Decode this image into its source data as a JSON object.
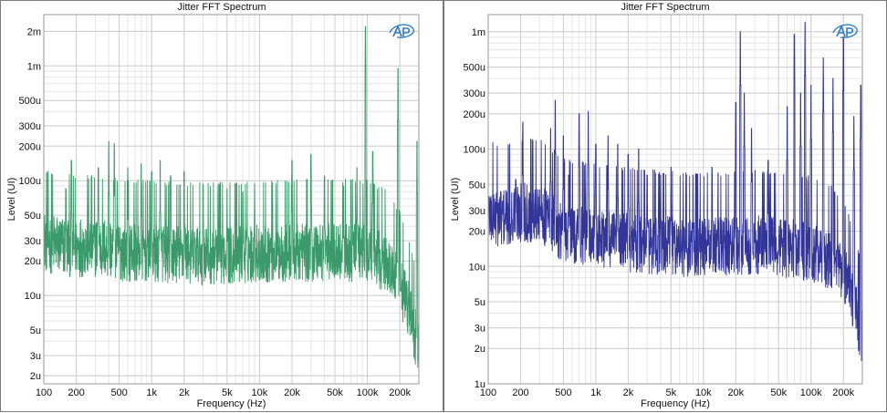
{
  "chart_data": [
    {
      "type": "line",
      "title": "Jitter FFT Spectrum",
      "xlabel": "Frequency (Hz)",
      "ylabel": "Level (UI)",
      "x_scale": "log",
      "y_scale": "log",
      "xlim": [
        100,
        300000
      ],
      "ylim": [
        1.7e-06,
        0.0028
      ],
      "grid": true,
      "x_ticks": [
        {
          "v": 100,
          "label": "100"
        },
        {
          "v": 200,
          "label": "200"
        },
        {
          "v": 500,
          "label": "500"
        },
        {
          "v": 1000,
          "label": "1k"
        },
        {
          "v": 2000,
          "label": "2k"
        },
        {
          "v": 5000,
          "label": "5k"
        },
        {
          "v": 10000,
          "label": "10k"
        },
        {
          "v": 20000,
          "label": "20k"
        },
        {
          "v": 50000,
          "label": "50k"
        },
        {
          "v": 100000,
          "label": "100k"
        },
        {
          "v": 200000,
          "label": "200k"
        }
      ],
      "y_ticks": [
        {
          "v": 0.002,
          "label": "2m"
        },
        {
          "v": 0.001,
          "label": "1m"
        },
        {
          "v": 0.0005,
          "label": "500u"
        },
        {
          "v": 0.0003,
          "label": "300u"
        },
        {
          "v": 0.0002,
          "label": "200u"
        },
        {
          "v": 0.0001,
          "label": "100u"
        },
        {
          "v": 5e-05,
          "label": "50u"
        },
        {
          "v": 3e-05,
          "label": "30u"
        },
        {
          "v": 2e-05,
          "label": "20u"
        },
        {
          "v": 1e-05,
          "label": "10u"
        },
        {
          "v": 5e-06,
          "label": "5u"
        },
        {
          "v": 3e-06,
          "label": "3u"
        },
        {
          "v": 2e-06,
          "label": "2u"
        }
      ],
      "series_color": "#3a9a6a",
      "floor": [
        [
          100,
          3e-05
        ],
        [
          150,
          2.7e-05
        ],
        [
          300,
          2.7e-05
        ],
        [
          500,
          2.5e-05
        ],
        [
          1000,
          2.4e-05
        ],
        [
          3000,
          2.3e-05
        ],
        [
          10000,
          2.4e-05
        ],
        [
          50000,
          2.5e-05
        ],
        [
          100000,
          2.4e-05
        ],
        [
          150000,
          2e-05
        ],
        [
          200000,
          1.3e-05
        ],
        [
          250000,
          7e-06
        ],
        [
          300000,
          3.5e-06
        ]
      ],
      "spikes": [
        [
          160,
          8.5e-05
        ],
        [
          180,
          0.00015
        ],
        [
          320,
          0.00013
        ],
        [
          400,
          0.00022
        ],
        [
          450,
          0.00021
        ],
        [
          600,
          0.00013
        ],
        [
          800,
          0.00014
        ],
        [
          1000,
          0.00012
        ],
        [
          1200,
          0.00015
        ],
        [
          1500,
          0.00011
        ],
        [
          2000,
          0.00012
        ],
        [
          3000,
          9e-05
        ],
        [
          5000,
          8.5e-05
        ],
        [
          7000,
          8e-05
        ],
        [
          9000,
          9e-05
        ],
        [
          20000,
          0.00015
        ],
        [
          30000,
          0.00017
        ],
        [
          40000,
          0.00011
        ],
        [
          60000,
          9e-05
        ],
        [
          80000,
          0.00013
        ],
        [
          96000,
          0.0022
        ],
        [
          112000,
          0.00018
        ],
        [
          192000,
          0.00095
        ],
        [
          288000,
          0.00022
        ]
      ]
    },
    {
      "type": "line",
      "title": "Jitter FFT Spectrum",
      "xlabel": "Frequency (Hz)",
      "ylabel": "Level (UI)",
      "x_scale": "log",
      "y_scale": "log",
      "xlim": [
        100,
        300000
      ],
      "ylim": [
        1e-06,
        0.0014
      ],
      "grid": true,
      "x_ticks": [
        {
          "v": 100,
          "label": "100"
        },
        {
          "v": 200,
          "label": "200"
        },
        {
          "v": 500,
          "label": "500"
        },
        {
          "v": 1000,
          "label": "1k"
        },
        {
          "v": 2000,
          "label": "2k"
        },
        {
          "v": 5000,
          "label": "5k"
        },
        {
          "v": 10000,
          "label": "10k"
        },
        {
          "v": 20000,
          "label": "20k"
        },
        {
          "v": 50000,
          "label": "50k"
        },
        {
          "v": 100000,
          "label": "100k"
        },
        {
          "v": 200000,
          "label": "200k"
        }
      ],
      "y_ticks": [
        {
          "v": 0.001,
          "label": "1m"
        },
        {
          "v": 0.0005,
          "label": "500u"
        },
        {
          "v": 0.0003,
          "label": "300u"
        },
        {
          "v": 0.0002,
          "label": "200u"
        },
        {
          "v": 0.0001,
          "label": "100u"
        },
        {
          "v": 5e-05,
          "label": "50u"
        },
        {
          "v": 3e-05,
          "label": "30u"
        },
        {
          "v": 2e-05,
          "label": "20u"
        },
        {
          "v": 1e-05,
          "label": "10u"
        },
        {
          "v": 5e-06,
          "label": "5u"
        },
        {
          "v": 3e-06,
          "label": "3u"
        },
        {
          "v": 2e-06,
          "label": "2u"
        },
        {
          "v": 1e-06,
          "label": "1u"
        }
      ],
      "series_color": "#32359a",
      "floor": [
        [
          100,
          2.8e-05
        ],
        [
          150,
          2.6e-05
        ],
        [
          200,
          3e-05
        ],
        [
          300,
          3e-05
        ],
        [
          500,
          2e-05
        ],
        [
          1000,
          1.8e-05
        ],
        [
          3000,
          1.6e-05
        ],
        [
          10000,
          1.5e-05
        ],
        [
          30000,
          1.6e-05
        ],
        [
          60000,
          1.5e-05
        ],
        [
          100000,
          1.4e-05
        ],
        [
          150000,
          1.2e-05
        ],
        [
          200000,
          9e-06
        ],
        [
          250000,
          5e-06
        ],
        [
          300000,
          2.5e-06
        ]
      ],
      "spikes": [
        [
          180,
          5.5e-05
        ],
        [
          210,
          0.00017
        ],
        [
          300,
          4.5e-05
        ],
        [
          380,
          0.00015
        ],
        [
          420,
          0.00026
        ],
        [
          500,
          0.00013
        ],
        [
          560,
          6e-05
        ],
        [
          700,
          0.0002
        ],
        [
          850,
          0.00021
        ],
        [
          1000,
          0.00011
        ],
        [
          1300,
          0.00013
        ],
        [
          1600,
          0.00011
        ],
        [
          2000,
          9e-05
        ],
        [
          2500,
          0.0001
        ],
        [
          3000,
          6e-05
        ],
        [
          4000,
          6e-05
        ],
        [
          5000,
          7e-05
        ],
        [
          8000,
          6e-05
        ],
        [
          12000,
          7e-05
        ],
        [
          20000,
          0.00025
        ],
        [
          22000,
          0.001
        ],
        [
          24000,
          0.0003
        ],
        [
          28000,
          0.00015
        ],
        [
          40000,
          8e-05
        ],
        [
          60000,
          0.00023
        ],
        [
          70000,
          0.00095
        ],
        [
          80000,
          0.0003
        ],
        [
          88000,
          0.0012
        ],
        [
          100000,
          0.00035
        ],
        [
          130000,
          0.0006
        ],
        [
          160000,
          0.0004
        ],
        [
          200000,
          0.0009
        ],
        [
          250000,
          0.00019
        ],
        [
          290000,
          0.00035
        ]
      ]
    }
  ]
}
